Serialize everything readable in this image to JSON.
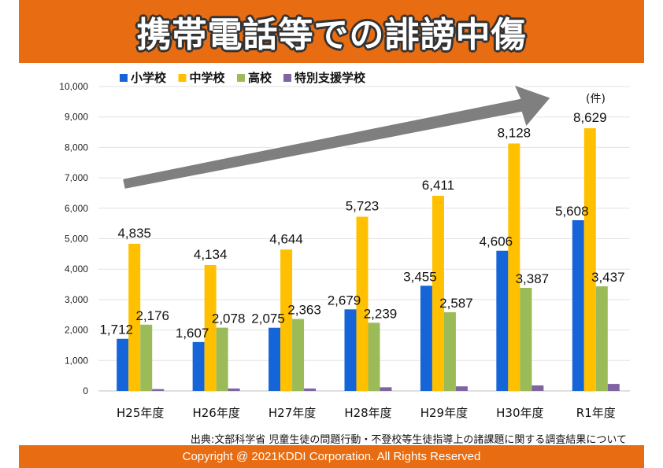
{
  "title": "携帯電話等での誹謗中傷",
  "source": "出典:文部科学省 児童生徒の問題行動・不登校等生徒指導上の諸課題に関する調査結果について",
  "footer": "Copyright @ 2021KDDI Corporation. All Rights Reserved",
  "chart_data": {
    "type": "bar",
    "title": "携帯電話等での誹謗中傷",
    "unit_label": "(件)",
    "categories": [
      "H25年度",
      "H26年度",
      "H27年度",
      "H28年度",
      "H29年度",
      "H30年度",
      "R1年度"
    ],
    "ylim": [
      0,
      10000
    ],
    "yticks": [
      "0",
      "1,000",
      "2,000",
      "3,000",
      "4,000",
      "5,000",
      "6,000",
      "7,000",
      "8,000",
      "9,000",
      "10,000"
    ],
    "legend_position": "top",
    "series": [
      {
        "name": "小学校",
        "color": "#1565d8",
        "values": [
          1712,
          1607,
          2075,
          2679,
          3455,
          4606,
          5608
        ],
        "labels": [
          "1,712",
          "1,607",
          "2,075",
          "2,679",
          "3,455",
          "4,606",
          "5,608"
        ]
      },
      {
        "name": "中学校",
        "color": "#ffc000",
        "values": [
          4835,
          4134,
          4644,
          5723,
          6411,
          8128,
          8629
        ],
        "labels": [
          "4,835",
          "4,134",
          "4,644",
          "5,723",
          "6,411",
          "8,128",
          "8,629"
        ]
      },
      {
        "name": "高校",
        "color": "#9bbb59",
        "values": [
          2176,
          2078,
          2363,
          2239,
          2587,
          3387,
          3437
        ],
        "labels": [
          "2,176",
          "2,078",
          "2,363",
          "2,239",
          "2,587",
          "3,387",
          "3,437"
        ]
      },
      {
        "name": "特別支援学校",
        "color": "#8064a2",
        "values": [
          60,
          80,
          80,
          120,
          150,
          180,
          230
        ],
        "labels": []
      }
    ],
    "annotation": "upward trend arrow"
  }
}
